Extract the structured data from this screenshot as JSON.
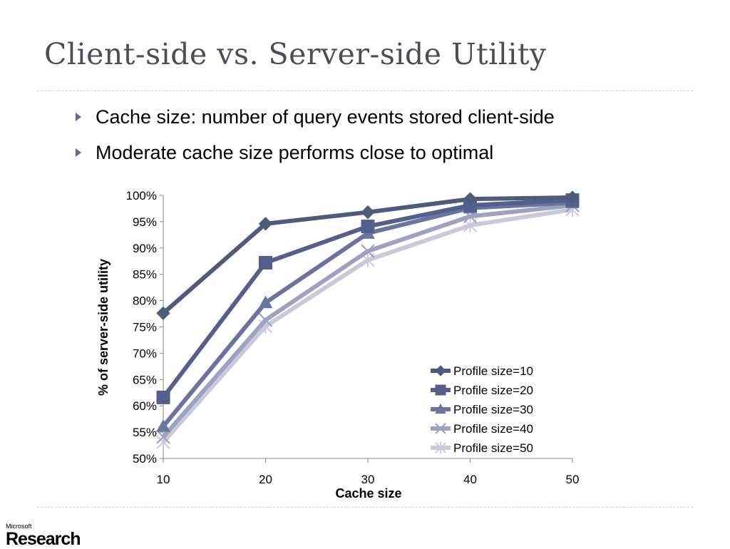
{
  "slide": {
    "title": "Client-side vs. Server-side Utility",
    "bullets": [
      "Cache size:  number of query events stored client-side",
      "Moderate cache size performs close to optimal"
    ]
  },
  "logo": {
    "company": "Microsoft",
    "division": "Research"
  },
  "chart_data": {
    "type": "line",
    "xlabel": "Cache size",
    "ylabel": "% of server-side utility",
    "x": [
      10,
      20,
      30,
      40,
      50
    ],
    "ylim": [
      50,
      100
    ],
    "yticks": [
      "50%",
      "55%",
      "60%",
      "65%",
      "70%",
      "75%",
      "80%",
      "85%",
      "90%",
      "95%",
      "100%"
    ],
    "legend_position": "bottom-right",
    "grid": false,
    "series": [
      {
        "name": "Profile size=10",
        "values": [
          77.6,
          94.6,
          96.8,
          99.3,
          99.6
        ],
        "color": "#4f5b7b",
        "marker": "diamond"
      },
      {
        "name": "Profile size=20",
        "values": [
          61.6,
          87.2,
          94.1,
          98.1,
          99.1
        ],
        "color": "#555f8c",
        "marker": "square"
      },
      {
        "name": "Profile size=30",
        "values": [
          56.1,
          79.6,
          92.8,
          97.6,
          98.6
        ],
        "color": "#6a74a1",
        "marker": "triangle"
      },
      {
        "name": "Profile size=40",
        "values": [
          54.1,
          76.3,
          89.4,
          96.0,
          98.1
        ],
        "color": "#9ca2c0",
        "marker": "x"
      },
      {
        "name": "Profile size=50",
        "values": [
          53.1,
          75.1,
          87.7,
          94.3,
          97.3
        ],
        "color": "#c8cadc",
        "marker": "star"
      }
    ]
  }
}
